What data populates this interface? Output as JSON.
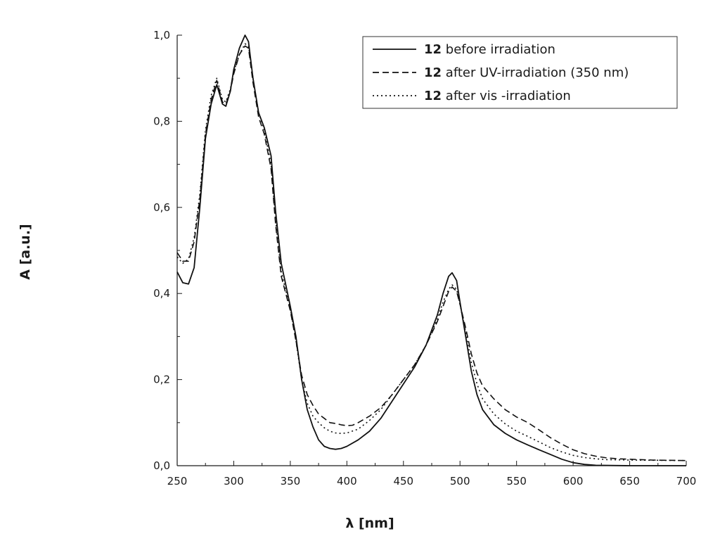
{
  "chart_data": {
    "type": "line",
    "xlabel": "λ [nm]",
    "ylabel": "A [a.u.]",
    "xlim": [
      250,
      700
    ],
    "ylim": [
      0,
      1.0
    ],
    "x_ticks": [
      250,
      300,
      350,
      400,
      450,
      500,
      550,
      600,
      650,
      700
    ],
    "x_tick_labels": [
      "250",
      "300",
      "350",
      "400",
      "450",
      "500",
      "550",
      "600",
      "650",
      "700"
    ],
    "y_ticks": [
      0,
      0.2,
      0.4,
      0.6,
      0.8,
      1.0
    ],
    "y_tick_labels": [
      "0,0",
      "0,2",
      "0,4",
      "0,6",
      "0,8",
      "1,0"
    ],
    "grid": false,
    "legend_position": "top-right",
    "series": [
      {
        "name": "12 before irradiation",
        "name_bold": "12",
        "name_rest": "before irradiation",
        "style": "solid",
        "points": [
          [
            250,
            0.45
          ],
          [
            255,
            0.425
          ],
          [
            260,
            0.422
          ],
          [
            265,
            0.46
          ],
          [
            270,
            0.6
          ],
          [
            275,
            0.76
          ],
          [
            280,
            0.84
          ],
          [
            285,
            0.885
          ],
          [
            290,
            0.84
          ],
          [
            293,
            0.835
          ],
          [
            297,
            0.87
          ],
          [
            300,
            0.92
          ],
          [
            305,
            0.97
          ],
          [
            310,
            1.0
          ],
          [
            313,
            0.985
          ],
          [
            317,
            0.9
          ],
          [
            322,
            0.82
          ],
          [
            327,
            0.785
          ],
          [
            333,
            0.72
          ],
          [
            337,
            0.59
          ],
          [
            342,
            0.47
          ],
          [
            350,
            0.37
          ],
          [
            355,
            0.3
          ],
          [
            360,
            0.2
          ],
          [
            365,
            0.13
          ],
          [
            370,
            0.09
          ],
          [
            375,
            0.06
          ],
          [
            380,
            0.045
          ],
          [
            385,
            0.04
          ],
          [
            390,
            0.038
          ],
          [
            395,
            0.04
          ],
          [
            400,
            0.045
          ],
          [
            410,
            0.06
          ],
          [
            420,
            0.08
          ],
          [
            430,
            0.11
          ],
          [
            440,
            0.15
          ],
          [
            450,
            0.19
          ],
          [
            460,
            0.23
          ],
          [
            470,
            0.28
          ],
          [
            480,
            0.35
          ],
          [
            485,
            0.4
          ],
          [
            490,
            0.44
          ],
          [
            493,
            0.448
          ],
          [
            497,
            0.43
          ],
          [
            500,
            0.38
          ],
          [
            505,
            0.3
          ],
          [
            510,
            0.22
          ],
          [
            515,
            0.165
          ],
          [
            520,
            0.13
          ],
          [
            530,
            0.095
          ],
          [
            540,
            0.075
          ],
          [
            550,
            0.06
          ],
          [
            560,
            0.048
          ],
          [
            570,
            0.037
          ],
          [
            580,
            0.026
          ],
          [
            590,
            0.015
          ],
          [
            600,
            0.007
          ],
          [
            610,
            0.003
          ],
          [
            620,
            0.001
          ],
          [
            650,
            0.0
          ],
          [
            700,
            0.0
          ]
        ]
      },
      {
        "name": "12 after UV-irradiation (350 nm)",
        "name_bold": "12",
        "name_rest": "after UV-irradiation (350 nm)",
        "style": "dashed",
        "points": [
          [
            250,
            0.495
          ],
          [
            255,
            0.475
          ],
          [
            260,
            0.475
          ],
          [
            265,
            0.52
          ],
          [
            270,
            0.62
          ],
          [
            275,
            0.77
          ],
          [
            280,
            0.85
          ],
          [
            285,
            0.895
          ],
          [
            290,
            0.845
          ],
          [
            293,
            0.84
          ],
          [
            297,
            0.87
          ],
          [
            300,
            0.91
          ],
          [
            305,
            0.955
          ],
          [
            310,
            0.975
          ],
          [
            313,
            0.97
          ],
          [
            317,
            0.89
          ],
          [
            322,
            0.81
          ],
          [
            327,
            0.77
          ],
          [
            333,
            0.69
          ],
          [
            337,
            0.56
          ],
          [
            342,
            0.44
          ],
          [
            350,
            0.36
          ],
          [
            355,
            0.29
          ],
          [
            360,
            0.21
          ],
          [
            365,
            0.165
          ],
          [
            370,
            0.14
          ],
          [
            375,
            0.12
          ],
          [
            380,
            0.11
          ],
          [
            385,
            0.1
          ],
          [
            390,
            0.098
          ],
          [
            395,
            0.095
          ],
          [
            400,
            0.093
          ],
          [
            405,
            0.094
          ],
          [
            410,
            0.1
          ],
          [
            420,
            0.115
          ],
          [
            430,
            0.135
          ],
          [
            440,
            0.165
          ],
          [
            450,
            0.2
          ],
          [
            460,
            0.235
          ],
          [
            470,
            0.28
          ],
          [
            480,
            0.335
          ],
          [
            485,
            0.37
          ],
          [
            490,
            0.405
          ],
          [
            493,
            0.415
          ],
          [
            497,
            0.405
          ],
          [
            500,
            0.375
          ],
          [
            505,
            0.32
          ],
          [
            510,
            0.26
          ],
          [
            515,
            0.215
          ],
          [
            520,
            0.185
          ],
          [
            530,
            0.155
          ],
          [
            540,
            0.13
          ],
          [
            550,
            0.113
          ],
          [
            560,
            0.1
          ],
          [
            570,
            0.083
          ],
          [
            580,
            0.065
          ],
          [
            590,
            0.05
          ],
          [
            600,
            0.037
          ],
          [
            610,
            0.028
          ],
          [
            620,
            0.022
          ],
          [
            630,
            0.018
          ],
          [
            640,
            0.016
          ],
          [
            650,
            0.015
          ],
          [
            670,
            0.013
          ],
          [
            700,
            0.012
          ]
        ]
      },
      {
        "name": "12 after vis-irradiation",
        "name_bold": "12",
        "name_rest": "after vis -irradiation",
        "style": "dotted",
        "points": [
          [
            250,
            0.485
          ],
          [
            255,
            0.47
          ],
          [
            260,
            0.48
          ],
          [
            265,
            0.53
          ],
          [
            270,
            0.63
          ],
          [
            275,
            0.78
          ],
          [
            280,
            0.86
          ],
          [
            285,
            0.9
          ],
          [
            290,
            0.85
          ],
          [
            293,
            0.845
          ],
          [
            297,
            0.875
          ],
          [
            300,
            0.915
          ],
          [
            305,
            0.955
          ],
          [
            310,
            0.98
          ],
          [
            313,
            0.975
          ],
          [
            317,
            0.9
          ],
          [
            322,
            0.82
          ],
          [
            327,
            0.78
          ],
          [
            333,
            0.7
          ],
          [
            337,
            0.57
          ],
          [
            342,
            0.45
          ],
          [
            350,
            0.365
          ],
          [
            355,
            0.29
          ],
          [
            360,
            0.2
          ],
          [
            365,
            0.145
          ],
          [
            370,
            0.115
          ],
          [
            375,
            0.1
          ],
          [
            380,
            0.088
          ],
          [
            385,
            0.08
          ],
          [
            390,
            0.076
          ],
          [
            395,
            0.075
          ],
          [
            400,
            0.076
          ],
          [
            410,
            0.085
          ],
          [
            420,
            0.105
          ],
          [
            430,
            0.13
          ],
          [
            440,
            0.165
          ],
          [
            450,
            0.2
          ],
          [
            460,
            0.235
          ],
          [
            470,
            0.28
          ],
          [
            480,
            0.34
          ],
          [
            485,
            0.38
          ],
          [
            490,
            0.41
          ],
          [
            493,
            0.42
          ],
          [
            497,
            0.41
          ],
          [
            500,
            0.375
          ],
          [
            505,
            0.31
          ],
          [
            510,
            0.24
          ],
          [
            515,
            0.19
          ],
          [
            520,
            0.155
          ],
          [
            530,
            0.12
          ],
          [
            540,
            0.097
          ],
          [
            550,
            0.08
          ],
          [
            560,
            0.068
          ],
          [
            570,
            0.055
          ],
          [
            580,
            0.042
          ],
          [
            590,
            0.032
          ],
          [
            600,
            0.024
          ],
          [
            610,
            0.019
          ],
          [
            620,
            0.016
          ],
          [
            630,
            0.014
          ],
          [
            650,
            0.013
          ],
          [
            700,
            0.012
          ]
        ]
      }
    ]
  }
}
